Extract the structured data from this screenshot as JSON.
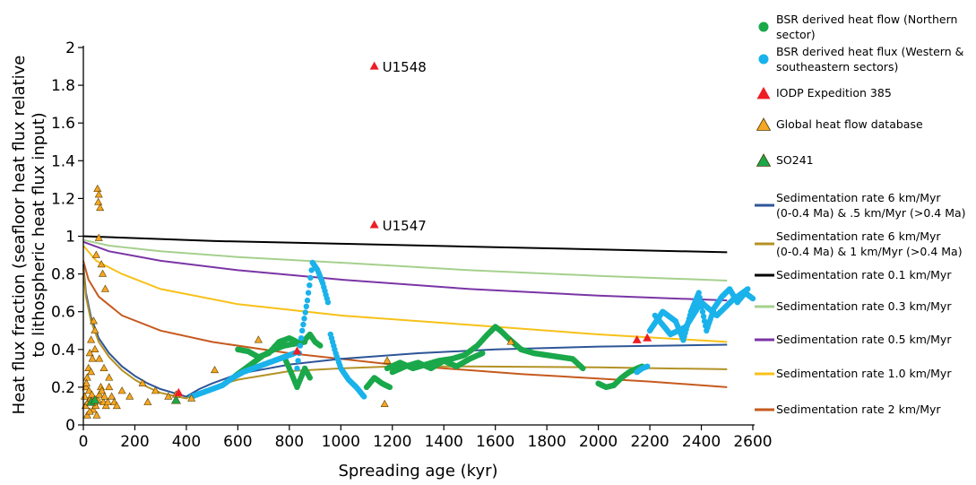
{
  "chart_data": {
    "type": "scatter",
    "title": "",
    "xlabel": "Spreading age (kyr)",
    "ylabel_lines": [
      "Heat flux fraction (seafloor heat flux relative",
      "to lithospheric heat flux input)"
    ],
    "xlim": [
      0,
      2600
    ],
    "ylim": [
      0,
      2
    ],
    "xticks": [
      0,
      200,
      400,
      600,
      800,
      1000,
      1200,
      1400,
      1600,
      1800,
      2000,
      2200,
      2400,
      2600
    ],
    "yticks": [
      0,
      0.2,
      0.4,
      0.6,
      0.8,
      1,
      1.2,
      1.4,
      1.6,
      1.8,
      2
    ],
    "ytick_labels": [
      "0",
      "0.2",
      "0.4",
      "0.6",
      "0.8",
      "1",
      "1.2",
      "1.4",
      "1.6",
      "1.8",
      "2"
    ],
    "grid": false,
    "legend_position": "right",
    "legend": [
      {
        "kind": "dot",
        "color": "#1aa84a",
        "lines": [
          "BSR derived heat flow (Northern",
          "sector)"
        ]
      },
      {
        "kind": "dot",
        "color": "#1ab2ea",
        "lines": [
          "BSR derived heat flux (Western &",
          "southeastern sectors)"
        ]
      },
      {
        "kind": "triangle",
        "color": "#ee1c24",
        "lines": [
          "IODP Expedition 385"
        ]
      },
      {
        "kind": "triangle",
        "color": "#f6a623",
        "lines": [
          "Global heat flow database"
        ]
      },
      {
        "kind": "triangle",
        "color": "#1aa84a",
        "lines": [
          "SO241"
        ]
      },
      {
        "kind": "line",
        "color": "#2e5597",
        "lines": [
          "Sedimentation rate 6 km/Myr",
          "(0-0.4 Ma) & .5 km/Myr (>0.4 Ma)"
        ]
      },
      {
        "kind": "line",
        "color": "#b39225",
        "lines": [
          "Sedimentation rate 6 km/Myr",
          "(0-0.4 Ma) & 1 km/Myr (>0.4 Ma)"
        ]
      },
      {
        "kind": "line",
        "color": "#000000",
        "lines": [
          "Sedimentation rate 0.1 km/Myr"
        ]
      },
      {
        "kind": "line",
        "color": "#a6d08e",
        "lines": [
          "Sedimentation rate 0.3 km/Myr"
        ]
      },
      {
        "kind": "line",
        "color": "#7a35a5",
        "lines": [
          "Sedimentation rate 0.5 km/Myr"
        ]
      },
      {
        "kind": "line",
        "color": "#f7c119",
        "lines": [
          "Sedimentation rate 1.0 km/Myr"
        ]
      },
      {
        "kind": "line",
        "color": "#c65a1e",
        "lines": [
          "Sedimentation rate 2 km/Myr"
        ]
      }
    ],
    "annotations": [
      {
        "text": "U1548",
        "x": 1130,
        "y": 1.9
      },
      {
        "text": "U1547",
        "x": 1130,
        "y": 1.06
      }
    ],
    "model_lines": [
      {
        "name": "Sedimentation rate 0.1 km/Myr",
        "color": "#000000",
        "x": [
          0,
          500,
          1000,
          1500,
          2000,
          2500
        ],
        "y": [
          1.0,
          0.975,
          0.96,
          0.945,
          0.93,
          0.915
        ]
      },
      {
        "name": "Sedimentation rate 0.3 km/Myr",
        "color": "#a6d08e",
        "x": [
          0,
          100,
          300,
          600,
          1000,
          1500,
          2000,
          2500
        ],
        "y": [
          0.98,
          0.95,
          0.92,
          0.89,
          0.86,
          0.82,
          0.79,
          0.765
        ]
      },
      {
        "name": "Sedimentation rate 0.5 km/Myr",
        "color": "#7a35a5",
        "x": [
          0,
          100,
          300,
          600,
          1000,
          1500,
          2000,
          2500
        ],
        "y": [
          0.97,
          0.92,
          0.87,
          0.82,
          0.77,
          0.72,
          0.685,
          0.66
        ]
      },
      {
        "name": "Sedimentation rate 1.0 km/Myr",
        "color": "#f7c119",
        "x": [
          0,
          50,
          150,
          300,
          600,
          1000,
          1500,
          2000,
          2500
        ],
        "y": [
          0.95,
          0.87,
          0.8,
          0.72,
          0.64,
          0.58,
          0.53,
          0.48,
          0.44
        ]
      },
      {
        "name": "Sedimentation rate 2 km/Myr",
        "color": "#c65a1e",
        "x": [
          0,
          20,
          60,
          150,
          300,
          500,
          800,
          1200,
          1700,
          2200,
          2500
        ],
        "y": [
          0.87,
          0.77,
          0.68,
          0.58,
          0.5,
          0.44,
          0.38,
          0.32,
          0.27,
          0.23,
          0.2
        ]
      },
      {
        "name": "Sedimentation rate 6 km/Myr (0-0.4 Ma) & .5 km/Myr (>0.4 Ma)",
        "color": "#2e5597",
        "x": [
          0,
          10,
          30,
          60,
          100,
          150,
          200,
          250,
          300,
          350,
          400,
          450,
          500,
          600,
          800,
          1000,
          1300,
          1600,
          2000,
          2500
        ],
        "y": [
          0.85,
          0.7,
          0.57,
          0.46,
          0.38,
          0.31,
          0.26,
          0.22,
          0.19,
          0.17,
          0.15,
          0.19,
          0.22,
          0.27,
          0.32,
          0.35,
          0.38,
          0.4,
          0.415,
          0.425
        ]
      },
      {
        "name": "Sedimentation rate 6 km/Myr (0-0.4 Ma) & 1 km/Myr (>0.4 Ma)",
        "color": "#b39225",
        "x": [
          0,
          10,
          30,
          60,
          100,
          150,
          200,
          250,
          300,
          350,
          400,
          450,
          500,
          600,
          800,
          1000,
          1200,
          1500,
          2000,
          2500
        ],
        "y": [
          0.83,
          0.68,
          0.55,
          0.44,
          0.36,
          0.29,
          0.24,
          0.2,
          0.17,
          0.155,
          0.14,
          0.175,
          0.2,
          0.24,
          0.285,
          0.3,
          0.31,
          0.31,
          0.305,
          0.295
        ]
      }
    ],
    "series": [
      {
        "name": "BSR derived heat flow (Northern sector)",
        "color": "#1aa84a",
        "kind": "dot",
        "segments": [
          {
            "x": [
              590,
              620,
              660,
              700,
              740,
              780,
              820,
              860
            ],
            "y": [
              0.26,
              0.29,
              0.33,
              0.37,
              0.4,
              0.42,
              0.43,
              0.44
            ]
          },
          {
            "x": [
              600,
              640,
              680,
              720,
              760,
              800,
              830
            ],
            "y": [
              0.4,
              0.39,
              0.36,
              0.38,
              0.44,
              0.46,
              0.44
            ]
          },
          {
            "x": [
              780,
              800,
              830,
              860,
              880
            ],
            "y": [
              0.36,
              0.3,
              0.2,
              0.3,
              0.25
            ]
          },
          {
            "x": [
              840,
              860,
              880,
              900,
              920
            ],
            "y": [
              0.43,
              0.45,
              0.48,
              0.44,
              0.42
            ]
          },
          {
            "x": [
              1100,
              1130,
              1160,
              1190
            ],
            "y": [
              0.2,
              0.25,
              0.22,
              0.2
            ]
          },
          {
            "x": [
              1180,
              1230,
              1280,
              1330,
              1380,
              1430,
              1480,
              1530,
              1570,
              1600,
              1620,
              1650,
              1700,
              1750,
              1800,
              1850,
              1900,
              1940
            ],
            "y": [
              0.3,
              0.33,
              0.3,
              0.32,
              0.34,
              0.35,
              0.37,
              0.42,
              0.48,
              0.52,
              0.5,
              0.46,
              0.4,
              0.38,
              0.37,
              0.36,
              0.35,
              0.3
            ]
          },
          {
            "x": [
              1200,
              1250,
              1300,
              1350,
              1400,
              1450,
              1500,
              1550
            ],
            "y": [
              0.28,
              0.31,
              0.33,
              0.3,
              0.34,
              0.31,
              0.35,
              0.38
            ]
          },
          {
            "x": [
              2000,
              2030,
              2060,
              2090,
              2120,
              2150,
              2170
            ],
            "y": [
              0.22,
              0.2,
              0.21,
              0.25,
              0.28,
              0.3,
              0.31
            ]
          }
        ]
      },
      {
        "name": "BSR derived heat flux (Western & southeastern sectors)",
        "color": "#1ab2ea",
        "kind": "dot",
        "segments": [
          {
            "x": [
              420,
              460,
              500,
              540,
              580,
              620,
              660,
              700,
              740,
              780,
              820
            ],
            "y": [
              0.15,
              0.17,
              0.19,
              0.21,
              0.25,
              0.28,
              0.3,
              0.32,
              0.34,
              0.36,
              0.38
            ]
          },
          {
            "x": [
              830,
              850,
              870,
              890,
              910,
              930,
              950
            ],
            "y": [
              0.3,
              0.5,
              0.66,
              0.86,
              0.82,
              0.75,
              0.65
            ]
          },
          {
            "x": [
              960,
              980,
              1000,
              1030,
              1060,
              1090
            ],
            "y": [
              0.48,
              0.38,
              0.3,
              0.24,
              0.2,
              0.15
            ]
          },
          {
            "x": [
              2150,
              2170,
              2190
            ],
            "y": [
              0.28,
              0.3,
              0.31
            ]
          },
          {
            "x": [
              2200,
              2250,
              2300,
              2330,
              2360,
              2390,
              2420,
              2450,
              2480,
              2510,
              2540,
              2570,
              2600
            ],
            "y": [
              0.5,
              0.6,
              0.55,
              0.45,
              0.6,
              0.7,
              0.5,
              0.62,
              0.68,
              0.72,
              0.65,
              0.7,
              0.67
            ]
          },
          {
            "x": [
              2220,
              2280,
              2340,
              2400,
              2460,
              2520,
              2580
            ],
            "y": [
              0.58,
              0.48,
              0.52,
              0.65,
              0.58,
              0.66,
              0.72
            ]
          }
        ]
      },
      {
        "name": "IODP Expedition 385",
        "color": "#ee1c24",
        "kind": "triangle",
        "x": [
          1130,
          1130,
          830,
          2150,
          2190,
          370
        ],
        "y": [
          1.9,
          1.06,
          0.39,
          0.45,
          0.46,
          0.17
        ]
      },
      {
        "name": "Global heat flow database",
        "color": "#f6a623",
        "kind": "triangle",
        "x": [
          55,
          60,
          58,
          65,
          60,
          50,
          70,
          75,
          85,
          40,
          45,
          30,
          25,
          35,
          20,
          15,
          10,
          12,
          5,
          8,
          18,
          22,
          28,
          33,
          38,
          42,
          48,
          52,
          57,
          62,
          68,
          72,
          78,
          82,
          88,
          95,
          100,
          110,
          120,
          130,
          150,
          180,
          230,
          250,
          280,
          330,
          360,
          420,
          510,
          680,
          1170,
          1660,
          1180,
          30,
          45,
          62,
          80,
          100,
          15,
          25
        ],
        "y": [
          1.25,
          1.22,
          1.18,
          1.15,
          0.99,
          0.9,
          0.85,
          0.8,
          0.72,
          0.55,
          0.5,
          0.45,
          0.38,
          0.35,
          0.3,
          0.25,
          0.2,
          0.22,
          0.15,
          0.1,
          0.12,
          0.18,
          0.14,
          0.16,
          0.08,
          0.12,
          0.1,
          0.05,
          0.13,
          0.16,
          0.2,
          0.18,
          0.12,
          0.15,
          0.1,
          0.12,
          0.2,
          0.15,
          0.12,
          0.1,
          0.18,
          0.15,
          0.22,
          0.12,
          0.18,
          0.15,
          0.16,
          0.14,
          0.29,
          0.45,
          0.11,
          0.44,
          0.34,
          0.28,
          0.4,
          0.35,
          0.3,
          0.25,
          0.05,
          0.07
        ]
      },
      {
        "name": "SO241",
        "color": "#1aa84a",
        "kind": "triangle",
        "x": [
          30,
          45,
          360
        ],
        "y": [
          0.12,
          0.13,
          0.13
        ]
      }
    ]
  }
}
